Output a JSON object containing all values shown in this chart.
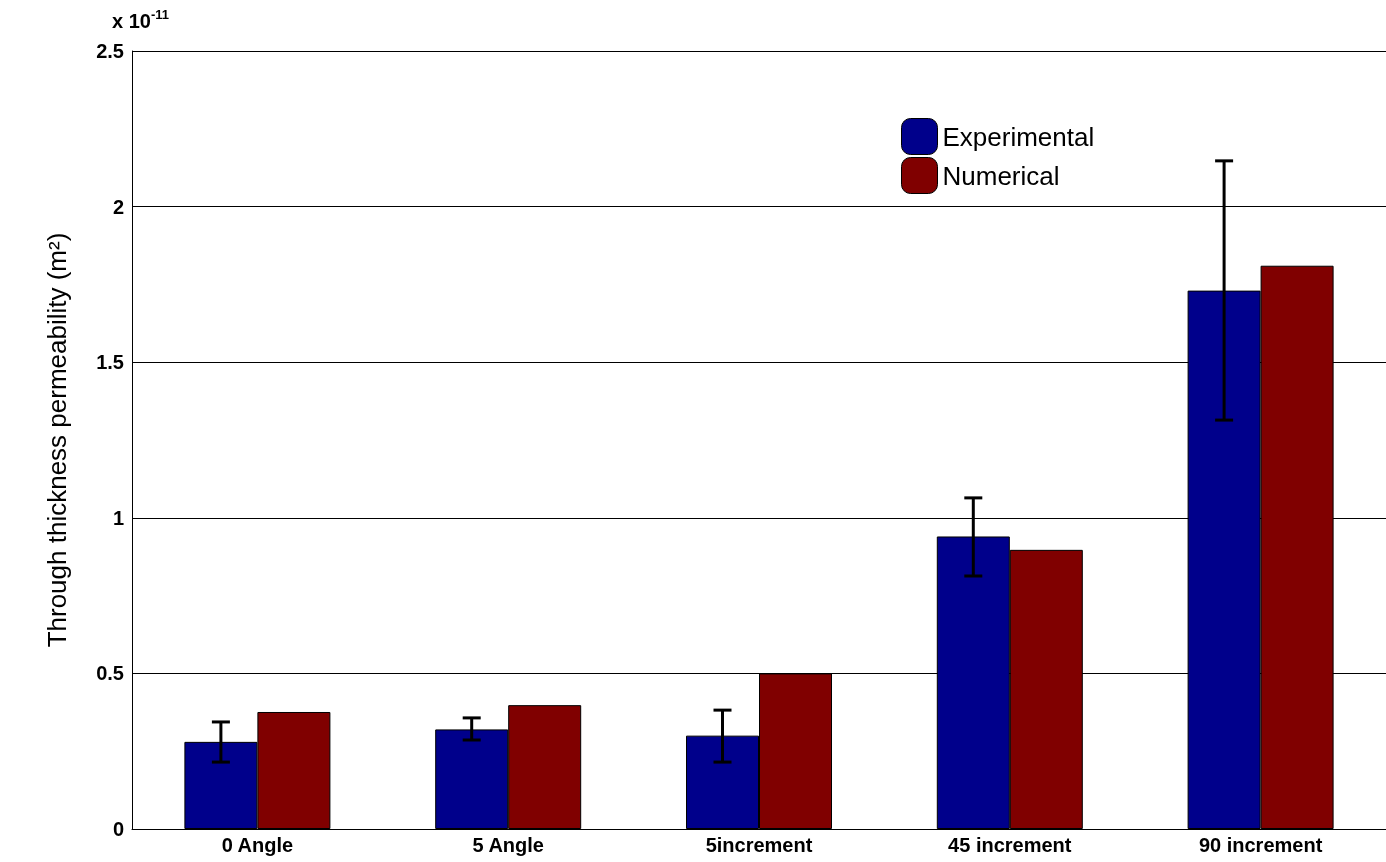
{
  "chart_data": {
    "type": "bar",
    "ylabel": "Through thickness permeability (m²)",
    "annotations": [
      "x 10$^{-11}$"
    ],
    "categories": [
      "0 Angle",
      "5 Angle",
      "5increment",
      "45 increment",
      "90 increment"
    ],
    "series": [
      {
        "name": "Experimental",
        "color": "#00008b",
        "values": [
          0.28,
          0.32,
          0.3,
          0.94,
          1.73
        ],
        "errors": [
          [
            0.215,
            0.344
          ],
          [
            0.286,
            0.357
          ],
          [
            0.215,
            0.382
          ],
          [
            0.813,
            1.064
          ],
          [
            1.314,
            2.147
          ]
        ]
      },
      {
        "name": "Numerical",
        "color": "#800000",
        "values": [
          0.376,
          0.398,
          0.5,
          0.897,
          1.81
        ]
      }
    ],
    "ylim": [
      0,
      2.5
    ],
    "yticks": [
      0,
      0.5,
      1,
      1.5,
      2,
      2.5
    ],
    "grid": "y",
    "legend": "top right"
  }
}
